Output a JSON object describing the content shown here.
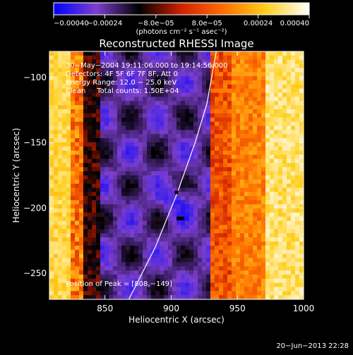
{
  "chart_data": {
    "type": "heatmap",
    "title": "Reconstructed RHESSI Image",
    "xlabel": "Heliocentric X (arcsec)",
    "ylabel": "Heliocentric Y (arcsec)",
    "xlim": [
      808,
      1000
    ],
    "ylim": [
      -270,
      -80
    ],
    "x_ticks": [
      850,
      900,
      950,
      1000
    ],
    "x_tick_labels": [
      "850",
      "900",
      "950",
      "1000"
    ],
    "y_ticks": [
      -250,
      -200,
      -150,
      -100
    ],
    "y_tick_labels": [
      "−250",
      "−200",
      "−150",
      "−100"
    ],
    "colorbar": {
      "range": [
        -0.0004,
        0.0004
      ],
      "tick_values": [
        -0.0004,
        -0.00024,
        -8e-05,
        8e-05,
        0.00024,
        0.0004
      ],
      "tick_labels": [
        "−0.00040",
        "−0.00024",
        "−8.0e−05",
        "8.0e−05",
        "0.00024",
        "0.00040"
      ],
      "unit_label": "(photons cm⁻² s⁻¹ asec⁻²)",
      "colors": [
        "#0000ff",
        "#7c3fd0",
        "#000000",
        "#d22000",
        "#ff7000",
        "#ffd020",
        "#ffffff"
      ]
    },
    "annotations": [
      "30−May−2004 19:11:06.000 to 19:14:56.000",
      "Detectors: 4F 5F 6F 7F 8F, Att 0",
      "Energy Range: 12.0 − 25.0 keV",
      "Clean     Total counts: 1.50E+04"
    ],
    "peak_label": "Position of Peak = [808,−149]",
    "limb_points": [
      [
        868,
        -270
      ],
      [
        888,
        -230
      ],
      [
        904,
        -190
      ],
      [
        918,
        -150
      ],
      [
        927,
        -120
      ],
      [
        934,
        -80
      ]
    ],
    "source_points": [
      [
        904,
        -188
      ],
      [
        907,
        -208
      ]
    ],
    "grid": false,
    "legend": "none"
  },
  "footer": {
    "timestamp": "20−Jun−2013 22:28"
  }
}
